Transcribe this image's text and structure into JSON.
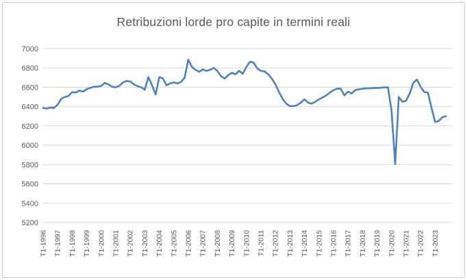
{
  "styles": {
    "title_color": "#595959",
    "axis_label_color": "#595959",
    "gridline_color": "#D9D9D9",
    "line_color": "#4F81BD",
    "frame_border_color": "#C9C9C9",
    "background": "#FFFFFF"
  },
  "chart_data": {
    "type": "line",
    "title": "Retribuzioni lorde pro capite in termini reali",
    "xlabel": "",
    "ylabel": "",
    "legend": "none",
    "grid": "horizontal",
    "ylim": [
      5200,
      7000
    ],
    "y_ticks": [
      7000,
      6800,
      6600,
      6400,
      6200,
      6000,
      5800,
      5600,
      5400,
      5200
    ],
    "x_tick_labels": [
      "T1-1996",
      "T1-1997",
      "T1-1998",
      "T1-1999",
      "T1-2000",
      "T1-2001",
      "T1-2002",
      "T1-2003",
      "T1-2004",
      "T1-2005",
      "T1-2006",
      "T1-2007",
      "T1-2008",
      "T1-2009",
      "T1-2010",
      "T1-2011",
      "T1-2012",
      "T1-2013",
      "T1-2014",
      "T1-2015",
      "T1-2016",
      "T1-2017",
      "T1-2018",
      "T1-2019",
      "T1-2020",
      "T1-2021",
      "T1-2022",
      "T1-2023"
    ],
    "frequency": "quarterly",
    "start_period": "T1-1996",
    "end_period": "T4-2023",
    "quarters_per_tick": 4,
    "series": [
      {
        "color": "#4F81BD",
        "values": [
          6385,
          6380,
          6390,
          6385,
          6420,
          6480,
          6500,
          6510,
          6550,
          6545,
          6565,
          6555,
          6580,
          6595,
          6605,
          6605,
          6615,
          6645,
          6630,
          6605,
          6600,
          6615,
          6650,
          6665,
          6660,
          6630,
          6610,
          6600,
          6575,
          6705,
          6620,
          6525,
          6705,
          6690,
          6620,
          6640,
          6650,
          6640,
          6655,
          6700,
          6885,
          6810,
          6780,
          6760,
          6785,
          6770,
          6780,
          6800,
          6770,
          6715,
          6690,
          6725,
          6750,
          6735,
          6770,
          6740,
          6810,
          6865,
          6855,
          6795,
          6770,
          6765,
          6735,
          6690,
          6630,
          6550,
          6480,
          6430,
          6405,
          6405,
          6415,
          6440,
          6475,
          6440,
          6430,
          6450,
          6475,
          6495,
          6515,
          6545,
          6570,
          6585,
          6585,
          6515,
          6555,
          6535,
          6570,
          6578,
          6585,
          6588,
          6590,
          6592,
          6592,
          6595,
          6598,
          6600,
          6360,
          5805,
          6500,
          6450,
          6460,
          6535,
          6645,
          6680,
          6605,
          6550,
          6545,
          6390,
          6240,
          6250,
          6290,
          6300
        ]
      }
    ]
  }
}
